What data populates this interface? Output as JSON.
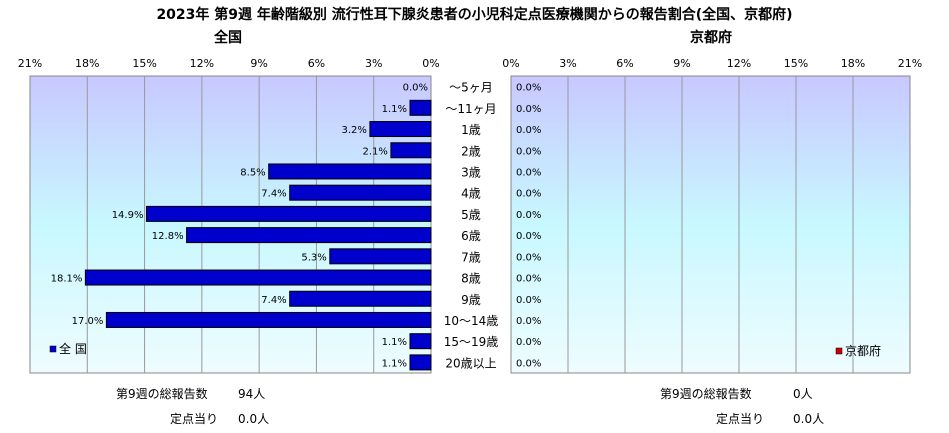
{
  "title": "2023年 第9週 年齢階級別 流行性耳下腺炎患者の小児科定点医療機関からの報告割合(全国、京都府)",
  "colors": {
    "national": "#0000cc",
    "kyoto": "#cc0000"
  },
  "chart_data": {
    "type": "bar",
    "orientation": "horizontal",
    "categories": [
      "～5ヶ月",
      "～11ヶ月",
      "1歳",
      "2歳",
      "3歳",
      "4歳",
      "5歳",
      "6歳",
      "7歳",
      "8歳",
      "9歳",
      "10～14歳",
      "15～19歳",
      "20歳以上"
    ],
    "xlim": [
      0,
      21
    ],
    "x_ticks": [
      "0%",
      "3%",
      "6%",
      "9%",
      "12%",
      "15%",
      "18%",
      "21%"
    ],
    "grid": true,
    "series": [
      {
        "name": "全 国",
        "panel_title": "全国",
        "values": [
          0.0,
          1.1,
          3.2,
          2.1,
          8.5,
          7.4,
          14.9,
          12.8,
          5.3,
          18.1,
          7.4,
          17.0,
          1.1,
          1.1
        ],
        "labels": [
          "0.0%",
          "1.1%",
          "3.2%",
          "2.1%",
          "8.5%",
          "7.4%",
          "14.9%",
          "12.8%",
          "5.3%",
          "18.1%",
          "7.4%",
          "17.0%",
          "1.1%",
          "1.1%"
        ],
        "legend": "bottom-left"
      },
      {
        "name": "京都府",
        "panel_title": "京都府",
        "values": [
          0,
          0,
          0,
          0,
          0,
          0,
          0,
          0,
          0,
          0,
          0,
          0,
          0,
          0
        ],
        "labels": [
          "0.0%",
          "0.0%",
          "0.0%",
          "0.0%",
          "0.0%",
          "0.0%",
          "0.0%",
          "0.0%",
          "0.0%",
          "0.0%",
          "0.0%",
          "0.0%",
          "0.0%",
          "0.0%"
        ],
        "legend": "bottom-right"
      }
    ]
  },
  "footer": {
    "national": {
      "total_label": "第9週の総報告数",
      "total_value": "94人",
      "per_site_label": "定点当り",
      "per_site_value": "0.0人"
    },
    "kyoto": {
      "total_label": "第9週の総報告数",
      "total_value": "0人",
      "per_site_label": "定点当り",
      "per_site_value": "0.0人"
    }
  }
}
